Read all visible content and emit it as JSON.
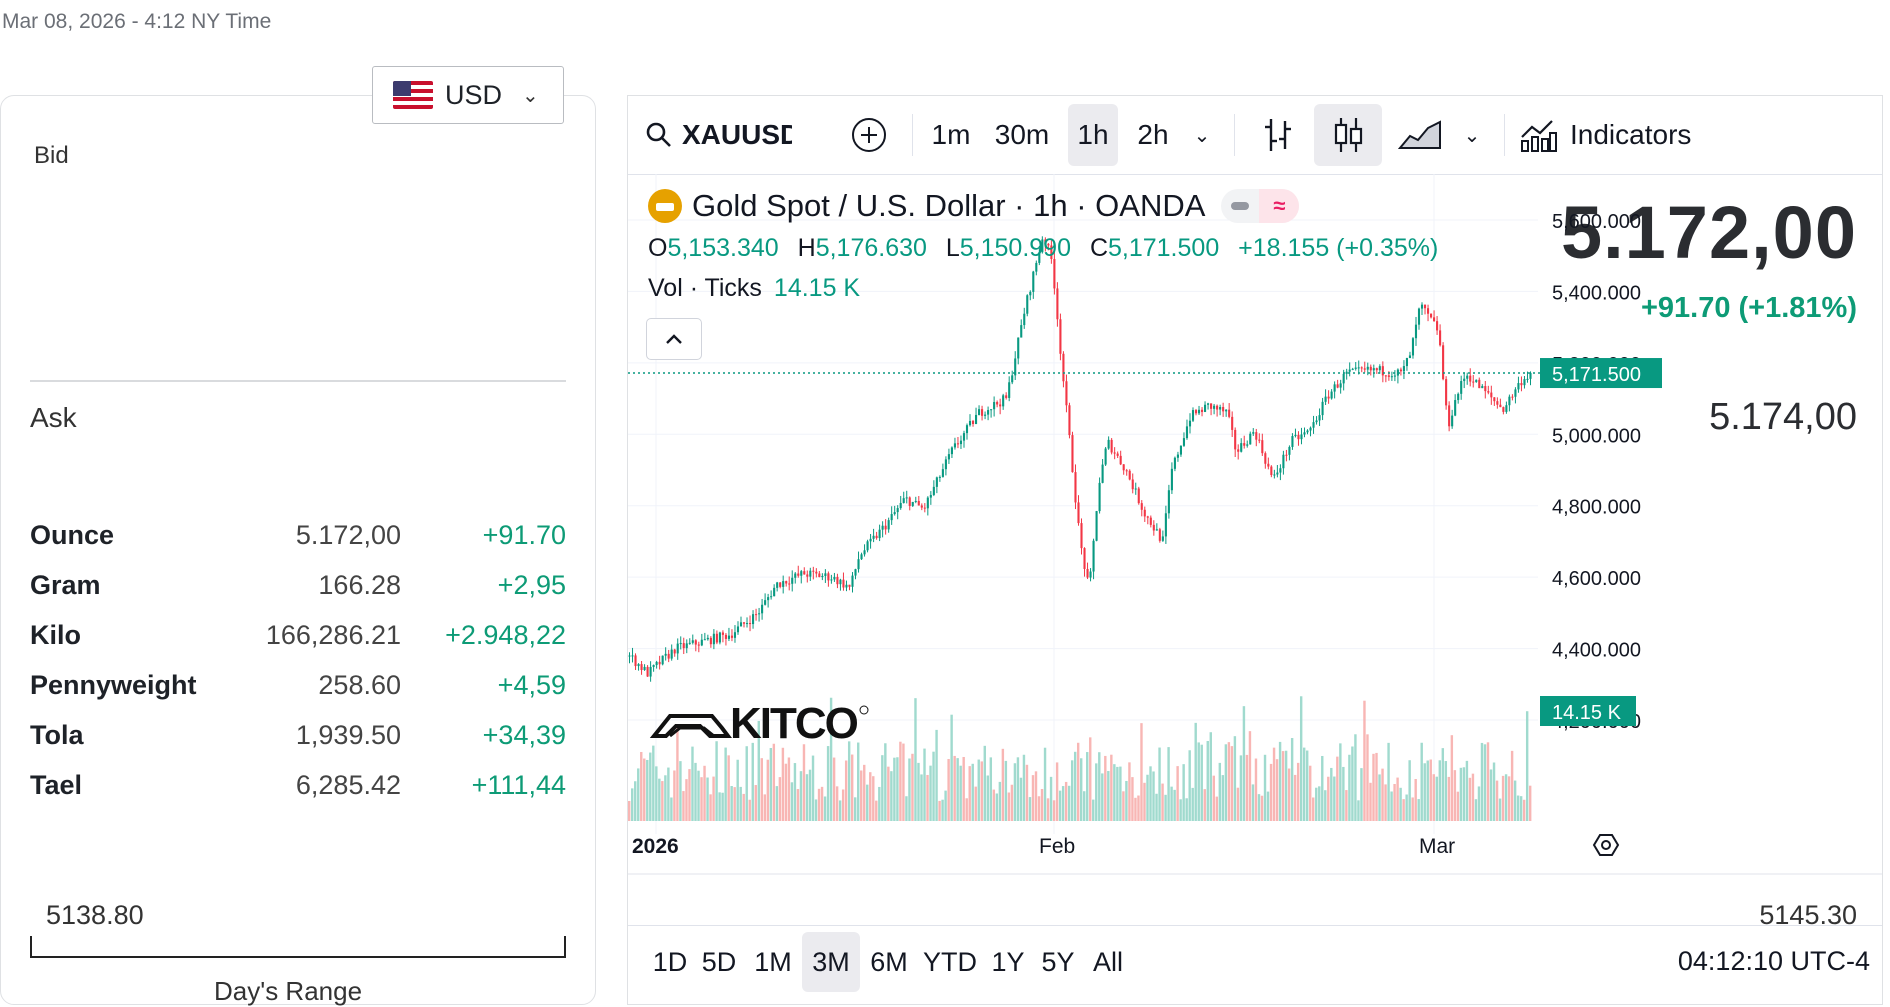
{
  "timestamp": "Mar 08, 2026 - 4:12 NY Time",
  "currency": {
    "code": "USD",
    "flag_icon": "us-flag-icon"
  },
  "quote": {
    "bid_label": "Bid",
    "bid": "5.172,00",
    "change": "+91.70 (+1.81%)",
    "ask_label": "Ask",
    "ask": "5.174,00"
  },
  "units": [
    {
      "name": "Ounce",
      "price": "5.172,00",
      "change": "+91.70"
    },
    {
      "name": "Gram",
      "price": "166.28",
      "change": "+2,95"
    },
    {
      "name": "Kilo",
      "price": "166,286.21",
      "change": "+2.948,22"
    },
    {
      "name": "Pennyweight",
      "price": "258.60",
      "change": "+4,59"
    },
    {
      "name": "Tola",
      "price": "1,939.50",
      "change": "+34,39"
    },
    {
      "name": "Tael",
      "price": "6,285.42",
      "change": "+111,44"
    }
  ],
  "day_range": {
    "low": "5138.80",
    "high": "5145.30",
    "title": "Day's Range"
  },
  "toolbar": {
    "symbol": "XAUUSD",
    "intervals": [
      "1m",
      "30m",
      "1h",
      "2h"
    ],
    "active_interval": "1h",
    "indicators_label": "Indicators"
  },
  "legend": {
    "title": "Gold Spot / U.S. Dollar · 1h · OANDA",
    "o_label": "O",
    "o": "5,153.340",
    "h_label": "H",
    "h": "5,176.630",
    "l_label": "L",
    "l": "5,150.990",
    "c_label": "C",
    "c": "5,171.500",
    "change": "+18.155 (+0.35%)",
    "vol_label": "Vol · Ticks",
    "vol": "14.15 K",
    "market_icon": "tilde-icon"
  },
  "watermark": "KITCO",
  "colors": {
    "up": "#089981",
    "down": "#f23645",
    "accent": "#089981"
  },
  "chart_data": {
    "type": "candlestick",
    "title": "Gold Spot / U.S. Dollar · 1h · OANDA",
    "y_ticks": [
      "5,600.000",
      "5,400.000",
      "5,200.000",
      "5,000.000",
      "4,800.000",
      "4,600.000",
      "4,400.000",
      "4,200.000"
    ],
    "ylim": [
      4200,
      5620
    ],
    "x_ticks": [
      "2026",
      "Feb",
      "Mar"
    ],
    "last_price": "5,171.500",
    "last_volume": "14.15 K",
    "grid": true,
    "close_path": [
      {
        "t": 0,
        "v": 4380
      },
      {
        "t": 2,
        "v": 4330
      },
      {
        "t": 5,
        "v": 4400
      },
      {
        "t": 8,
        "v": 4420
      },
      {
        "t": 11,
        "v": 4440
      },
      {
        "t": 14,
        "v": 4500
      },
      {
        "t": 16,
        "v": 4580
      },
      {
        "t": 19,
        "v": 4610
      },
      {
        "t": 22,
        "v": 4600
      },
      {
        "t": 24,
        "v": 4570
      },
      {
        "t": 25,
        "v": 4660
      },
      {
        "t": 28,
        "v": 4750
      },
      {
        "t": 30,
        "v": 4820
      },
      {
        "t": 32,
        "v": 4790
      },
      {
        "t": 35,
        "v": 4950
      },
      {
        "t": 38,
        "v": 5060
      },
      {
        "t": 41,
        "v": 5100
      },
      {
        "t": 43,
        "v": 5350
      },
      {
        "t": 45,
        "v": 5560
      },
      {
        "t": 46,
        "v": 5480
      },
      {
        "t": 47,
        "v": 5200
      },
      {
        "t": 49,
        "v": 4700
      },
      {
        "t": 50,
        "v": 4560
      },
      {
        "t": 51,
        "v": 4850
      },
      {
        "t": 52,
        "v": 4980
      },
      {
        "t": 54,
        "v": 4900
      },
      {
        "t": 56,
        "v": 4780
      },
      {
        "t": 58,
        "v": 4700
      },
      {
        "t": 59,
        "v": 4900
      },
      {
        "t": 61,
        "v": 5050
      },
      {
        "t": 63,
        "v": 5080
      },
      {
        "t": 65,
        "v": 5060
      },
      {
        "t": 66,
        "v": 4950
      },
      {
        "t": 68,
        "v": 5010
      },
      {
        "t": 70,
        "v": 4870
      },
      {
        "t": 72,
        "v": 4980
      },
      {
        "t": 74,
        "v": 5010
      },
      {
        "t": 76,
        "v": 5110
      },
      {
        "t": 78,
        "v": 5170
      },
      {
        "t": 81,
        "v": 5180
      },
      {
        "t": 84,
        "v": 5170
      },
      {
        "t": 85,
        "v": 5230
      },
      {
        "t": 86,
        "v": 5360
      },
      {
        "t": 88,
        "v": 5290
      },
      {
        "t": 89,
        "v": 5020
      },
      {
        "t": 90,
        "v": 5110
      },
      {
        "t": 91,
        "v": 5170
      },
      {
        "t": 93,
        "v": 5120
      },
      {
        "t": 95,
        "v": 5070
      },
      {
        "t": 97,
        "v": 5150
      },
      {
        "t": 98,
        "v": 5171
      }
    ]
  },
  "ranges": [
    "1D",
    "5D",
    "1M",
    "3M",
    "6M",
    "YTD",
    "1Y",
    "5Y",
    "All"
  ],
  "active_range": "3M",
  "clock": "04:12:10 UTC-4"
}
